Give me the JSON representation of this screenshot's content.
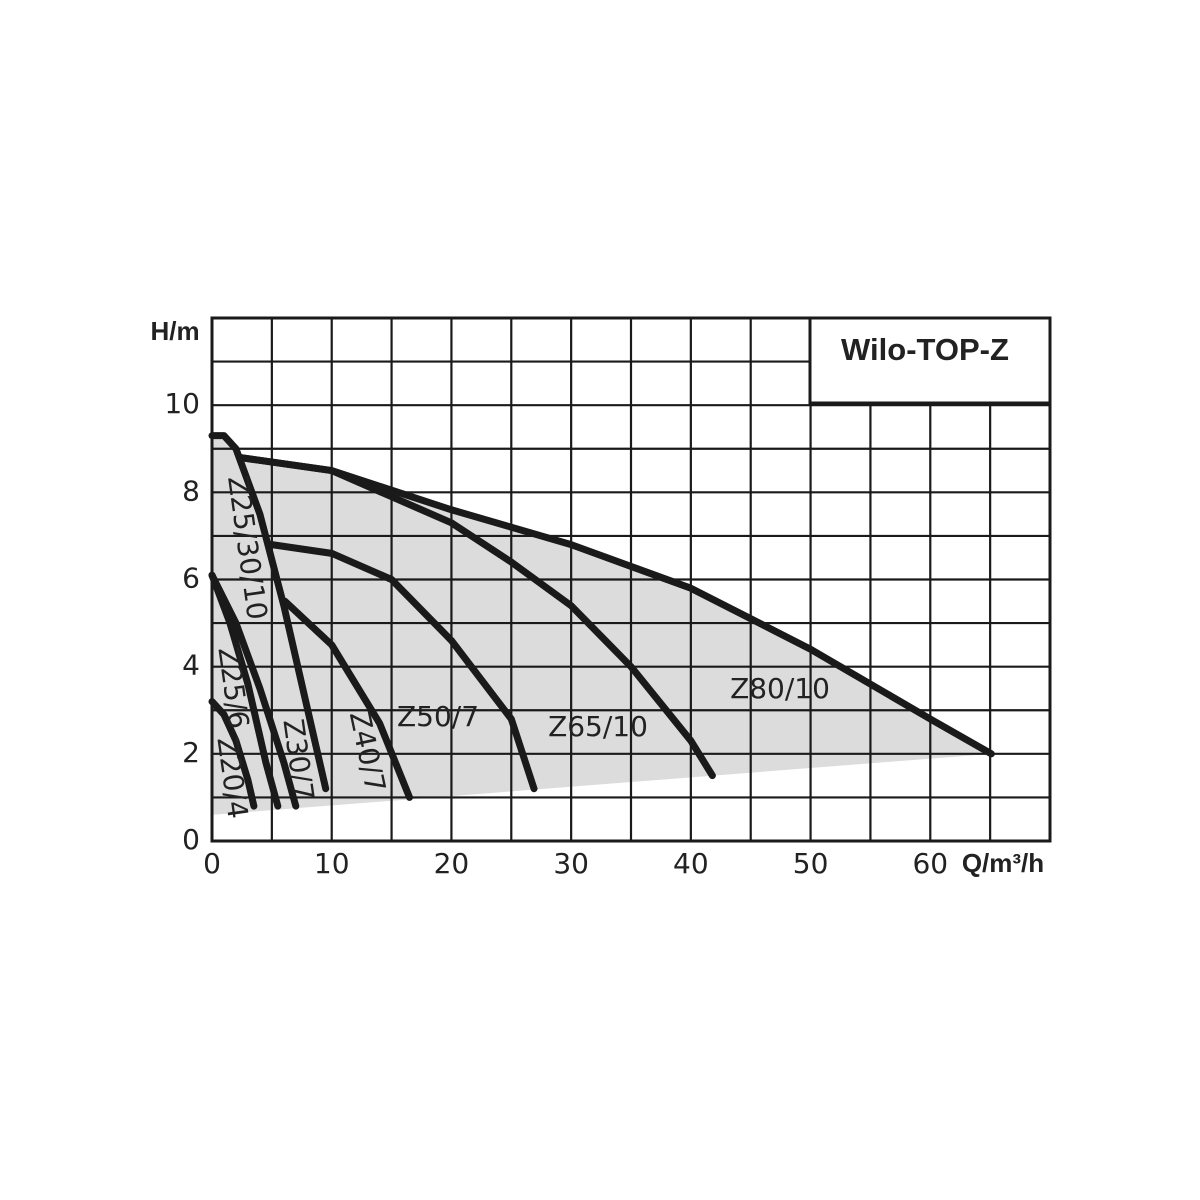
{
  "chart_data": {
    "type": "line",
    "title": "Wilo-TOP-Z",
    "x_label": "Q/m³/h",
    "y_label": "H/m",
    "xlim": [
      0,
      70
    ],
    "ylim": [
      0,
      12
    ],
    "xticks": [
      0,
      10,
      20,
      30,
      40,
      50,
      60
    ],
    "yticks": [
      0,
      2,
      4,
      6,
      8,
      10
    ],
    "grid": true,
    "color": "#1a1a1a",
    "area_color": "#dcdcdc",
    "range_floor": {
      "x": [
        0,
        65.1
      ],
      "values": [
        0.6,
        2.0
      ]
    },
    "series": [
      {
        "name": "Z20/4",
        "x": [
          0,
          1,
          2,
          3,
          3.5
        ],
        "values": [
          3.2,
          2.9,
          2.3,
          1.4,
          0.8
        ]
      },
      {
        "name": "Z25/6",
        "x": [
          0,
          1.5,
          3,
          4.5,
          5.5
        ],
        "values": [
          6.1,
          5.0,
          3.6,
          1.8,
          0.8
        ]
      },
      {
        "name": "Z30/7",
        "x": [
          0,
          2,
          4,
          6,
          7
        ],
        "values": [
          6.1,
          5.0,
          3.5,
          1.8,
          0.8
        ]
      },
      {
        "name": "Z25/30/10",
        "x": [
          0,
          1,
          2,
          4,
          6,
          8,
          9.5
        ],
        "values": [
          9.3,
          9.3,
          9.0,
          7.5,
          5.4,
          3.0,
          1.2
        ]
      },
      {
        "name": "Z40/7",
        "x": [
          6.1,
          10,
          14,
          16.5
        ],
        "values": [
          5.5,
          4.5,
          2.7,
          1.0
        ]
      },
      {
        "name": "Z50/7",
        "x": [
          5,
          10,
          15,
          20,
          25,
          26.9
        ],
        "values": [
          6.8,
          6.6,
          6.0,
          4.6,
          2.8,
          1.2
        ]
      },
      {
        "name": "Z65/10",
        "x": [
          2.3,
          10,
          15,
          20,
          25,
          30,
          35,
          40,
          41.8
        ],
        "values": [
          8.8,
          8.5,
          7.9,
          7.3,
          6.4,
          5.4,
          4.0,
          2.3,
          1.5
        ]
      },
      {
        "name": "Z80/10",
        "x": [
          2.3,
          10,
          20,
          30,
          40,
          50,
          60,
          65.1
        ],
        "values": [
          8.8,
          8.5,
          7.6,
          6.8,
          5.8,
          4.4,
          2.8,
          2.0
        ]
      }
    ]
  }
}
